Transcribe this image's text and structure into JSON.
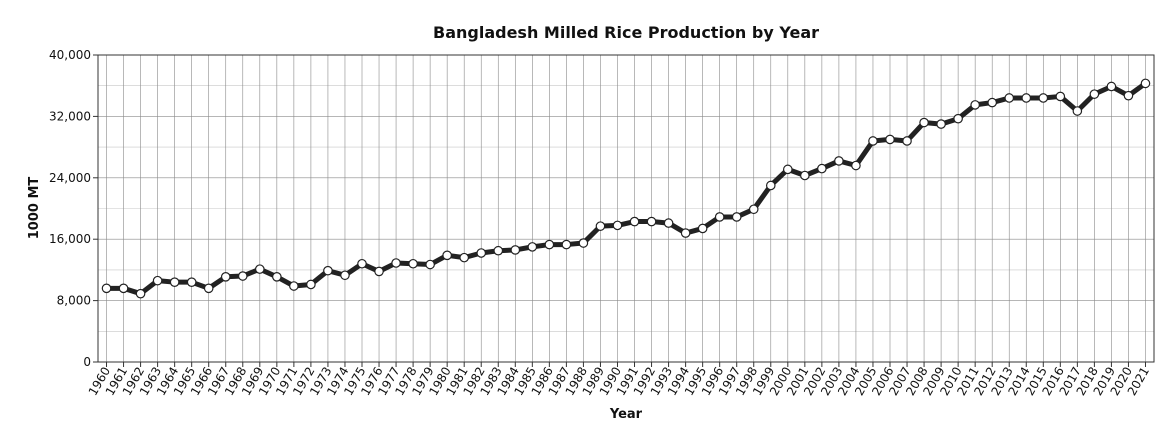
{
  "chart_data": {
    "type": "line",
    "title": "Bangladesh Milled Rice Production by Year",
    "xlabel": "Year",
    "ylabel": "1000 MT",
    "ylim": [
      0,
      40000
    ],
    "yticks": [
      0,
      8000,
      16000,
      24000,
      32000,
      40000
    ],
    "ytick_labels": [
      "0",
      "8,000",
      "16,000",
      "24,000",
      "32,000",
      "40,000"
    ],
    "grid": true,
    "colors": {
      "line": "#222222",
      "marker_fill": "#ffffff",
      "marker_stroke": "#222222"
    },
    "categories": [
      "1960",
      "1961",
      "1962",
      "1963",
      "1964",
      "1965",
      "1966",
      "1967",
      "1968",
      "1969",
      "1970",
      "1971",
      "1972",
      "1973",
      "1974",
      "1975",
      "1976",
      "1977",
      "1978",
      "1979",
      "1980",
      "1981",
      "1982",
      "1983",
      "1984",
      "1985",
      "1986",
      "1987",
      "1988",
      "1989",
      "1990",
      "1991",
      "1992",
      "1993",
      "1994",
      "1995",
      "1996",
      "1997",
      "1998",
      "1999",
      "2000",
      "2001",
      "2002",
      "2003",
      "2004",
      "2005",
      "2006",
      "2007",
      "2008",
      "2009",
      "2010",
      "2011",
      "2012",
      "2013",
      "2014",
      "2015",
      "2016",
      "2017",
      "2018",
      "2019",
      "2020",
      "2021"
    ],
    "series": [
      {
        "name": "Milled Rice Production",
        "values": [
          9600,
          9600,
          8900,
          10600,
          10400,
          10400,
          9600,
          11100,
          11200,
          12100,
          11100,
          9900,
          10100,
          11900,
          11300,
          12800,
          11800,
          12900,
          12800,
          12700,
          13900,
          13600,
          14200,
          14500,
          14600,
          15000,
          15300,
          15300,
          15500,
          17700,
          17800,
          18300,
          18300,
          18100,
          16800,
          17400,
          18900,
          18900,
          19900,
          23000,
          25100,
          24300,
          25200,
          26200,
          25600,
          28800,
          29000,
          28800,
          31200,
          31000,
          31700,
          33500,
          33800,
          34400,
          34400,
          34400,
          34600,
          32700,
          34900,
          35900,
          34700,
          36300
        ]
      }
    ]
  }
}
